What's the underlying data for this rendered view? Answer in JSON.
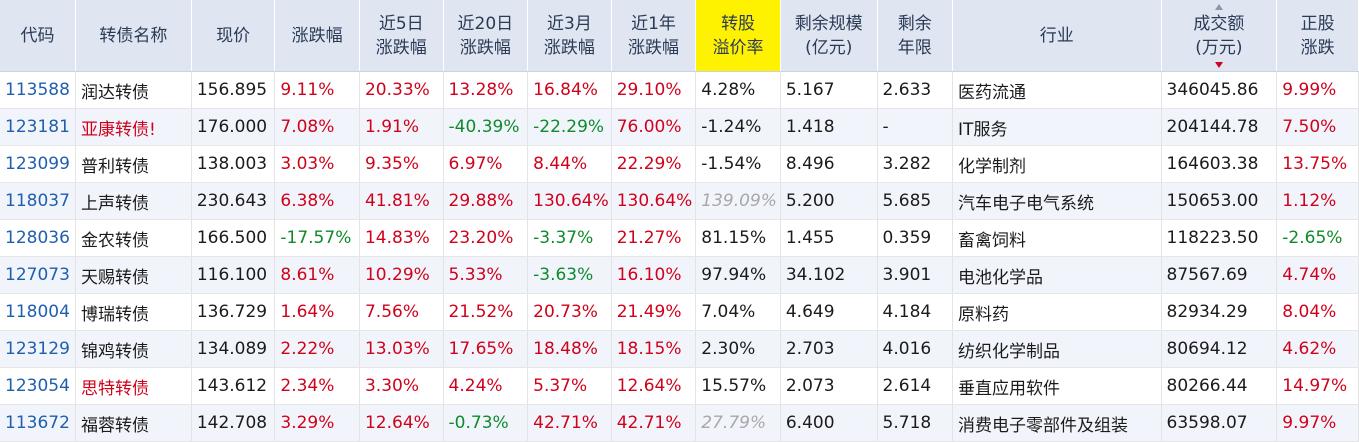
{
  "colors": {
    "up": "#d0021b",
    "down": "#0f8a2b",
    "header_bg": "#dfe6f2",
    "highlight": "#fff200",
    "code": "#1f5fae"
  },
  "header": {
    "code": "代码",
    "name": "转债名称",
    "price": "现价",
    "chg": "涨跌幅",
    "chg5d_1": "近5日",
    "chg5d_2": "涨跌幅",
    "chg20d_1": "近20日",
    "chg20d_2": "涨跌幅",
    "chg3m_1": "近3月",
    "chg3m_2": "涨跌幅",
    "chg1y_1": "近1年",
    "chg1y_2": "涨跌幅",
    "premium_1": "转股",
    "premium_2": "溢价率",
    "scale_1": "剩余规模",
    "scale_2": "(亿元)",
    "years_1": "剩余",
    "years_2": "年限",
    "industry": "行业",
    "turnover_1": "成交额",
    "turnover_2": "(万元)",
    "stock_1": "正股",
    "stock_2": "涨跌"
  },
  "rows": [
    {
      "code": "113588",
      "name": "润达转债",
      "price": "156.895",
      "chg": "9.11%",
      "chg5d": "20.33%",
      "chg20d": "13.28%",
      "chg3m": "16.84%",
      "chg1y": "29.10%",
      "premium": "4.28%",
      "scale": "5.167",
      "years": "2.633",
      "industry": "医药流通",
      "turnover": "346045.86",
      "stock": "9.99%"
    },
    {
      "code": "123181",
      "name": "亚康转债",
      "flag": "!",
      "price": "176.000",
      "chg": "7.08%",
      "chg5d": "1.91%",
      "chg20d": "-40.39%",
      "chg3m": "-22.29%",
      "chg1y": "76.00%",
      "premium": "-1.24%",
      "scale": "1.418",
      "years": "-",
      "industry": "IT服务",
      "turnover": "204144.78",
      "stock": "7.50%"
    },
    {
      "code": "123099",
      "name": "普利转债",
      "price": "138.003",
      "chg": "3.03%",
      "chg5d": "9.35%",
      "chg20d": "6.97%",
      "chg3m": "8.44%",
      "chg1y": "22.29%",
      "premium": "-1.54%",
      "scale": "8.496",
      "years": "3.282",
      "industry": "化学制剂",
      "turnover": "164603.38",
      "stock": "13.75%"
    },
    {
      "code": "118037",
      "name": "上声转债",
      "price": "230.643",
      "chg": "6.38%",
      "chg5d": "41.81%",
      "chg20d": "29.88%",
      "chg3m": "130.64%",
      "chg1y": "130.64%",
      "premium": "139.09%",
      "scale": "5.200",
      "years": "5.685",
      "industry": "汽车电子电气系统",
      "turnover": "150653.00",
      "stock": "1.12%"
    },
    {
      "code": "128036",
      "name": "金农转债",
      "price": "166.500",
      "chg": "-17.57%",
      "chg5d": "14.83%",
      "chg20d": "23.20%",
      "chg3m": "-3.37%",
      "chg1y": "21.27%",
      "premium": "81.15%",
      "scale": "1.455",
      "years": "0.359",
      "industry": "畜禽饲料",
      "turnover": "118223.50",
      "stock": "-2.65%"
    },
    {
      "code": "127073",
      "name": "天赐转债",
      "price": "116.100",
      "chg": "8.61%",
      "chg5d": "10.29%",
      "chg20d": "5.33%",
      "chg3m": "-3.63%",
      "chg1y": "16.10%",
      "premium": "97.94%",
      "scale": "34.102",
      "years": "3.901",
      "industry": "电池化学品",
      "turnover": "87567.69",
      "stock": "4.74%"
    },
    {
      "code": "118004",
      "name": "博瑞转债",
      "price": "136.729",
      "chg": "1.64%",
      "chg5d": "7.56%",
      "chg20d": "21.52%",
      "chg3m": "20.73%",
      "chg1y": "21.49%",
      "premium": "7.04%",
      "scale": "4.649",
      "years": "4.184",
      "industry": "原料药",
      "turnover": "82934.29",
      "stock": "8.04%"
    },
    {
      "code": "123129",
      "name": "锦鸡转债",
      "price": "134.089",
      "chg": "2.22%",
      "chg5d": "13.03%",
      "chg20d": "17.65%",
      "chg3m": "18.48%",
      "chg1y": "18.15%",
      "premium": "2.30%",
      "scale": "2.703",
      "years": "4.016",
      "industry": "纺织化学制品",
      "turnover": "80694.12",
      "stock": "4.62%"
    },
    {
      "code": "123054",
      "name": "思特转债",
      "price": "143.612",
      "chg": "2.34%",
      "chg5d": "3.30%",
      "chg20d": "4.24%",
      "chg3m": "5.37%",
      "chg1y": "12.64%",
      "premium": "15.57%",
      "scale": "2.073",
      "years": "2.614",
      "industry": "垂直应用软件",
      "turnover": "80266.44",
      "stock": "14.97%"
    },
    {
      "code": "113672",
      "name": "福蓉转债",
      "price": "142.708",
      "chg": "3.29%",
      "chg5d": "12.64%",
      "chg20d": "-0.73%",
      "chg3m": "42.71%",
      "chg1y": "42.71%",
      "premium": "27.79%",
      "scale": "6.400",
      "years": "5.718",
      "industry": "消费电子零部件及组装",
      "turnover": "63598.07",
      "stock": "9.97%"
    }
  ]
}
